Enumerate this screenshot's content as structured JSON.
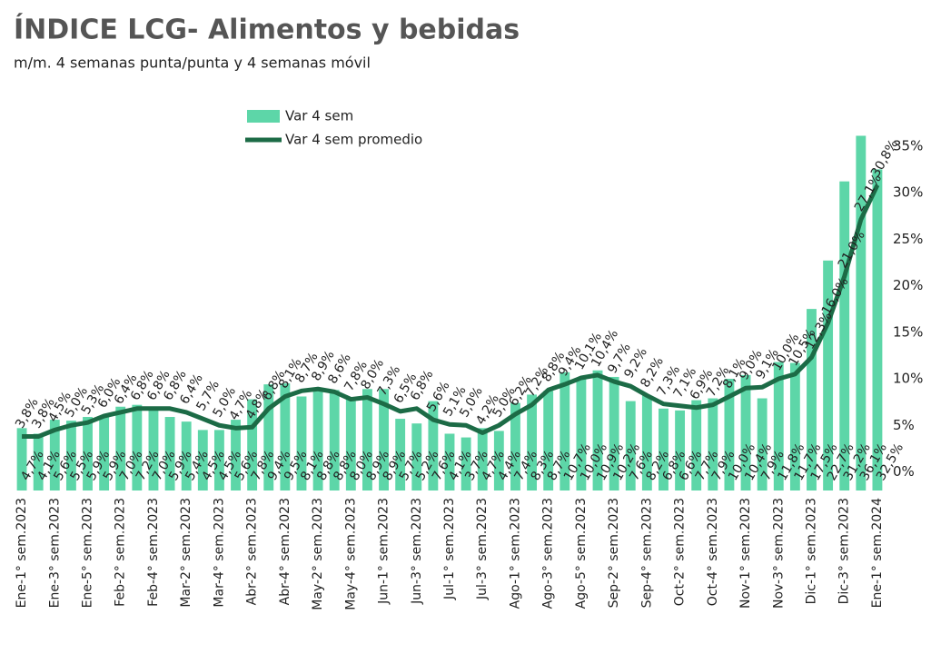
{
  "chart_data": {
    "type": "bar",
    "title": "ÍNDICE LCG- Alimentos y bebidas",
    "subtitle": "m/m. 4 semanas punta/punta y 4 semanas móvil",
    "categories": [
      "Ene-1° sem.2023",
      null,
      "Ene-3° sem.2023",
      null,
      "Ene-5° sem.2023",
      null,
      "Feb-2° sem.2023",
      null,
      "Feb-4° sem.2023",
      null,
      "Mar-2° sem.2023",
      null,
      "Mar-4° sem.2023",
      null,
      "Abr-2° sem.2023",
      null,
      "Abr-4° sem.2023",
      null,
      "May-2° sem.2023",
      null,
      "May-4° sem.2023",
      null,
      "Jun-1° sem.2023",
      null,
      "Jun-3° sem.2023",
      null,
      "Jul-1° sem.2023",
      null,
      "Jul-3° sem.2023",
      null,
      "Ago-1° sem.2023",
      null,
      "Ago-3° sem.2023",
      null,
      "Ago-5° sem.2023",
      null,
      "Sep-2° sem.2023",
      null,
      "Sep-4° sem.2023",
      null,
      "Oct-2° sem.2023",
      null,
      "Oct-4° sem.2023",
      null,
      "Nov-1° sem.2023",
      null,
      "Nov-3° sem.2023",
      null,
      "Dic-1° sem.2023",
      null,
      "Dic-3° sem.2023",
      null,
      "Ene-1° sem.2024"
    ],
    "series": [
      {
        "name": "Var 4 sem",
        "type": "bar",
        "color": "#5dd6a8",
        "values": [
          4.7,
          4.1,
          5.6,
          5.5,
          5.9,
          5.9,
          7.0,
          7.2,
          7.0,
          5.9,
          5.4,
          4.5,
          4.5,
          5.6,
          7.8,
          9.4,
          9.5,
          8.1,
          8.8,
          8.8,
          8.0,
          8.9,
          8.9,
          5.7,
          5.2,
          7.6,
          4.1,
          3.7,
          4.7,
          4.4,
          7.4,
          8.3,
          8.7,
          10.7,
          10.0,
          10.9,
          10.2,
          7.6,
          8.2,
          6.8,
          6.6,
          7.7,
          7.9,
          10.0,
          10.4,
          7.9,
          11.8,
          11.7,
          17.5,
          22.7,
          31.2,
          36.1,
          32.5
        ],
        "value_labels": [
          "4,7%",
          "4,1%",
          "5,6%",
          "5,5%",
          "5,9%",
          "5,9%",
          "7,0%",
          "7,2%",
          "7,0%",
          "5,9%",
          "5,4%",
          "4,5%",
          "4,5%",
          "5,6%",
          "7,8%",
          "9,4%",
          "9,5%",
          "8,1%",
          "8,8%",
          "8,8%",
          "8,0%",
          "8,9%",
          "8,9%",
          "5,7%",
          "5,2%",
          "7,6%",
          "4,1%",
          "3,7%",
          "4,7%",
          "4,4%",
          "7,4%",
          "8,3%",
          "8,7%",
          "10,7%",
          "10,0%",
          "10,9%",
          "10,2%",
          "7,6%",
          "8,2%",
          "6,8%",
          "6,6%",
          "7,7%",
          "7,9%",
          "10,0%",
          "10,4%",
          "7,9%",
          "11,8%",
          "11,7%",
          "17,5%",
          "22,7%",
          "31,2%",
          "36,1%",
          "32,5%"
        ]
      },
      {
        "name": "Var 4 sem promedio",
        "type": "line",
        "color": "#1c6b46",
        "values": [
          3.8,
          3.8,
          4.5,
          5.0,
          5.3,
          6.0,
          6.4,
          6.8,
          6.8,
          6.8,
          6.4,
          5.7,
          5.0,
          4.7,
          4.8,
          6.8,
          8.1,
          8.7,
          8.9,
          8.6,
          7.8,
          8.0,
          7.3,
          6.5,
          6.8,
          5.6,
          5.1,
          5.0,
          4.2,
          5.0,
          6.2,
          7.2,
          8.8,
          9.4,
          10.1,
          10.4,
          9.7,
          9.2,
          8.2,
          7.3,
          7.1,
          6.9,
          7.2,
          8.1,
          9.0,
          9.1,
          10.0,
          10.5,
          12.3,
          16.0,
          21.0,
          27.1,
          30.8
        ],
        "value_labels": [
          "3,8%",
          "3,8%",
          "4,5%",
          "5,0%",
          "5,3%",
          "6,0%",
          "6,4%",
          "6,8%",
          "6,8%",
          "6,8%",
          "6,4%",
          "5,7%",
          "5,0%",
          "4,7%",
          "4,8%",
          "6,8%",
          "8,1%",
          "8,7%",
          "8,9%",
          "8,6%",
          "7,8%",
          "8,0%",
          "7,3%",
          "6,5%",
          "6,8%",
          "5,6%",
          "5,1%",
          "5,0%",
          "4,2%",
          "5,0%",
          "6,2%",
          "7,2%",
          "8,8%",
          "9,4%",
          "10,1%",
          "10,4%",
          "9,7%",
          "9,2%",
          "8,2%",
          "7,3%",
          "7,1%",
          "6,9%",
          "7,2%",
          "8,1%",
          "9,0%",
          "9,1%",
          "10,0%",
          "10,5%",
          "12,3%",
          "16,0%",
          "21,0%",
          "27,1%",
          "30,8%"
        ]
      }
    ],
    "ylim": [
      -2,
      38
    ],
    "yticks": [
      {
        "value": 0,
        "label": "0%"
      },
      {
        "value": 5,
        "label": "5%"
      },
      {
        "value": 10,
        "label": "10%"
      },
      {
        "value": 15,
        "label": "15%"
      },
      {
        "value": 20,
        "label": "20%"
      },
      {
        "value": 25,
        "label": "25%"
      },
      {
        "value": 30,
        "label": "30%"
      },
      {
        "value": 35,
        "label": "35%"
      }
    ],
    "grid": false,
    "legend": "top"
  }
}
